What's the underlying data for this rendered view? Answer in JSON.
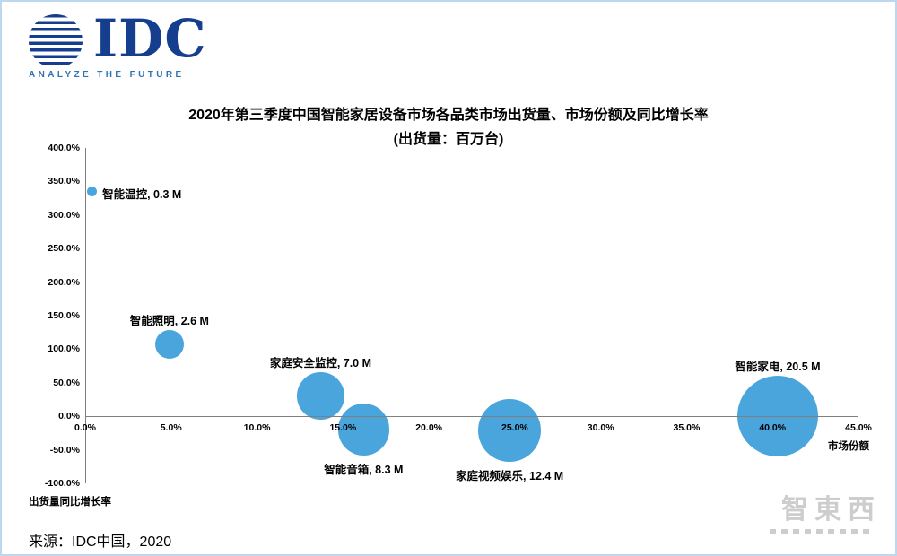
{
  "header": {
    "logo_text": "IDC",
    "logo_tagline": "ANALYZE THE FUTURE"
  },
  "colors": {
    "navy": "#163E8F",
    "tagline-blue": "#2E74B5",
    "frame": "#BDD7EE",
    "axis": "#7F7F7F",
    "bubble": "#4AA5DC",
    "watermark": "#CDCDCD"
  },
  "chart_data": {
    "type": "scatter",
    "title": "2020年第三季度中国智能家居设备市场各品类市场出货量、市场份额及同比增长率",
    "subtitle": "(出货量：百万台)",
    "xlabel": "市场份额",
    "ylabel": "出货量同比增长率",
    "xlim": [
      0,
      45
    ],
    "ylim": [
      -100,
      400
    ],
    "grid": false,
    "legend": "none",
    "x_ticks": [
      "0.0%",
      "5.0%",
      "10.0%",
      "15.0%",
      "20.0%",
      "25.0%",
      "30.0%",
      "35.0%",
      "40.0%",
      "45.0%"
    ],
    "y_ticks": [
      "400.0%",
      "350.0%",
      "300.0%",
      "250.0%",
      "200.0%",
      "150.0%",
      "100.0%",
      "50.0%",
      "0.0%",
      "-50.0%",
      "-100.0%"
    ],
    "bubble_color": "#4AA5DC",
    "points": [
      {
        "name": "智能温控",
        "label": "智能温控, 0.3 M",
        "share_pct": 0.4,
        "growth_pct": 335,
        "shipments_m": 0.3,
        "label_pos": "right"
      },
      {
        "name": "智能照明",
        "label": "智能照明, 2.6 M",
        "share_pct": 4.9,
        "growth_pct": 107,
        "shipments_m": 2.6,
        "label_pos": "above"
      },
      {
        "name": "家庭安全监控",
        "label": "家庭安全监控, 7.0 M",
        "share_pct": 13.7,
        "growth_pct": 30,
        "shipments_m": 7.0,
        "label_pos": "above"
      },
      {
        "name": "智能音箱",
        "label": "智能音箱, 8.3 M",
        "share_pct": 16.2,
        "growth_pct": -20,
        "shipments_m": 8.3,
        "label_pos": "below"
      },
      {
        "name": "家庭视频娱乐",
        "label": "家庭视频娱乐, 12.4 M",
        "share_pct": 24.7,
        "growth_pct": -21,
        "shipments_m": 12.4,
        "label_pos": "below"
      },
      {
        "name": "智能家电",
        "label": "智能家电, 20.5 M",
        "share_pct": 40.3,
        "growth_pct": 0,
        "shipments_m": 20.5,
        "label_pos": "above"
      }
    ]
  },
  "footer": {
    "source": "来源：IDC中国，2020"
  },
  "watermark": {
    "text": "智東西"
  }
}
